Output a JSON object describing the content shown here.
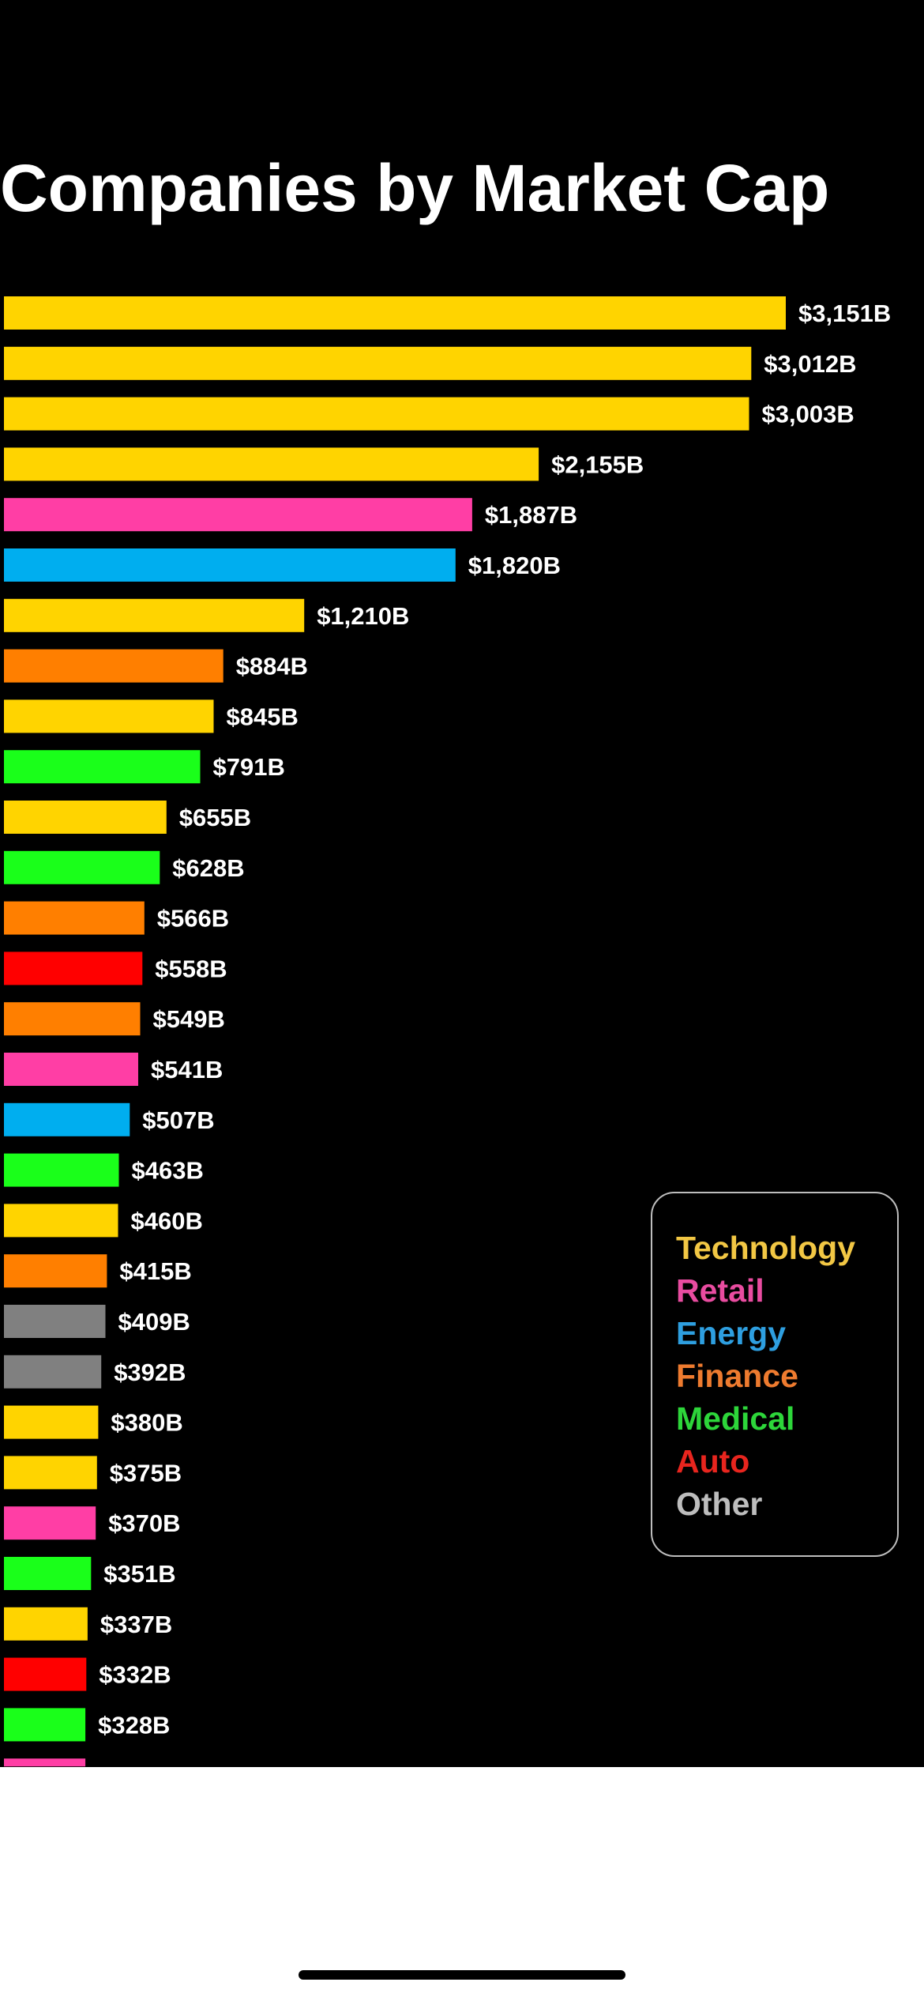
{
  "chart_data": {
    "type": "bar",
    "orientation": "horizontal",
    "title": "Companies by Market Cap",
    "unit": "$B",
    "values": [
      3151,
      3012,
      3003,
      2155,
      1887,
      1820,
      1210,
      884,
      845,
      791,
      655,
      628,
      566,
      558,
      549,
      541,
      507,
      463,
      460,
      415,
      409,
      392,
      380,
      375,
      370,
      351,
      337,
      332,
      328
    ],
    "value_labels": [
      "$3,151B",
      "$3,012B",
      "$3,003B",
      "$2,155B",
      "$1,887B",
      "$1,820B",
      "$1,210B",
      "$884B",
      "$845B",
      "$791B",
      "$655B",
      "$628B",
      "$566B",
      "$558B",
      "$549B",
      "$541B",
      "$507B",
      "$463B",
      "$460B",
      "$415B",
      "$409B",
      "$392B",
      "$380B",
      "$375B",
      "$370B",
      "$351B",
      "$337B",
      "$332B",
      "$328B"
    ],
    "sectors": [
      "Technology",
      "Technology",
      "Technology",
      "Technology",
      "Retail",
      "Energy",
      "Technology",
      "Finance",
      "Technology",
      "Medical",
      "Technology",
      "Medical",
      "Finance",
      "Auto",
      "Finance",
      "Retail",
      "Energy",
      "Medical",
      "Technology",
      "Finance",
      "Other",
      "Other",
      "Technology",
      "Technology",
      "Retail",
      "Medical",
      "Technology",
      "Auto",
      "Medical"
    ],
    "partially_visible_last_bar": {
      "sector": "Retail"
    },
    "legend": {
      "placement": "bottom-right",
      "entries": [
        {
          "name": "Technology",
          "color": "#FFD400"
        },
        {
          "name": "Retail",
          "color": "#FF3EA5"
        },
        {
          "name": "Energy",
          "color": "#00AEEF"
        },
        {
          "name": "Finance",
          "color": "#FF7F00"
        },
        {
          "name": "Medical",
          "color": "#1AFF1A"
        },
        {
          "name": "Auto",
          "color": "#FF0000"
        },
        {
          "name": "Other",
          "color": "#808080"
        }
      ]
    },
    "colors": {
      "background": "#000000",
      "text": "#FFFFFF",
      "legend_text": {
        "Technology": "#F2C744",
        "Retail": "#E94CA0",
        "Energy": "#2E9FE0",
        "Finance": "#EE7B2F",
        "Medical": "#2DD63A",
        "Auto": "#E8251E",
        "Other": "#BDBDBD"
      }
    },
    "grid": false,
    "xlim": [
      0,
      3151
    ]
  }
}
